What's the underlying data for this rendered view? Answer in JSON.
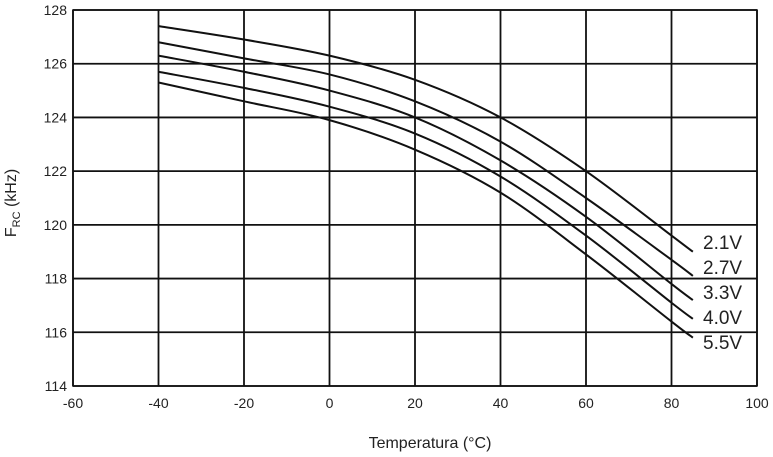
{
  "chart_data": {
    "type": "line",
    "title": "",
    "xlabel": "Temperatura (°C)",
    "ylabel_main": "F",
    "ylabel_sub": "RC",
    "ylabel_rest": " (kHz)",
    "xlim": [
      -60,
      100
    ],
    "ylim": [
      114,
      128
    ],
    "xticks": [
      -60,
      -40,
      -20,
      0,
      20,
      40,
      60,
      80,
      100
    ],
    "yticks": [
      114,
      116,
      118,
      120,
      122,
      124,
      126,
      128
    ],
    "grid": true,
    "legend": "inline-right",
    "line_color": "#111111",
    "grid_color": "#111111",
    "series": [
      {
        "name": "2.1V",
        "x": [
          -40,
          -20,
          0,
          20,
          40,
          60,
          80,
          85
        ],
        "y": [
          127.4,
          126.9,
          126.3,
          125.4,
          124.0,
          122.0,
          119.6,
          119.0
        ]
      },
      {
        "name": "2.7V",
        "x": [
          -40,
          -20,
          0,
          20,
          40,
          60,
          80,
          85
        ],
        "y": [
          126.8,
          126.2,
          125.6,
          124.6,
          123.1,
          121.0,
          118.7,
          118.1
        ]
      },
      {
        "name": "3.3V",
        "x": [
          -40,
          -20,
          0,
          20,
          40,
          60,
          80,
          85
        ],
        "y": [
          126.3,
          125.7,
          125.0,
          124.0,
          122.4,
          120.3,
          117.8,
          117.2
        ]
      },
      {
        "name": "4.0V",
        "x": [
          -40,
          -20,
          0,
          20,
          40,
          60,
          80,
          85
        ],
        "y": [
          125.7,
          125.1,
          124.4,
          123.4,
          121.8,
          119.6,
          117.1,
          116.5
        ]
      },
      {
        "name": "5.5V",
        "x": [
          -40,
          -20,
          0,
          20,
          40,
          60,
          80,
          85
        ],
        "y": [
          125.3,
          124.6,
          123.9,
          122.8,
          121.2,
          118.9,
          116.4,
          115.8
        ]
      }
    ]
  }
}
